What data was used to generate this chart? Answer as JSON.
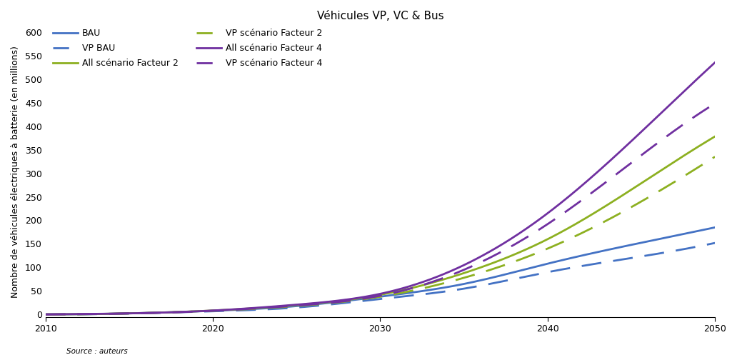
{
  "title": "Véhicules VP, VC & Bus",
  "ylabel": "Nombre de véhicules électriques à batterie (en millions)",
  "source": "Source : auteurs",
  "xlim": [
    2010,
    2050
  ],
  "ylim": [
    -5,
    610
  ],
  "yticks": [
    0,
    50,
    100,
    150,
    200,
    250,
    300,
    350,
    400,
    450,
    500,
    550,
    600
  ],
  "xticks": [
    2010,
    2020,
    2030,
    2040,
    2050
  ],
  "series": {
    "BAU": {
      "color": "#4472C4",
      "linestyle": "solid",
      "linewidth": 2.0,
      "label": "BAU",
      "points": [
        [
          2010,
          0.3
        ],
        [
          2015,
          2.5
        ],
        [
          2020,
          8
        ],
        [
          2025,
          18
        ],
        [
          2030,
          38
        ],
        [
          2035,
          65
        ],
        [
          2040,
          108
        ],
        [
          2045,
          148
        ],
        [
          2050,
          185
        ]
      ]
    },
    "VP_BAU": {
      "color": "#4472C4",
      "linestyle": "dashed",
      "linewidth": 2.0,
      "label": "VP BAU",
      "points": [
        [
          2010,
          0.3
        ],
        [
          2015,
          2.2
        ],
        [
          2020,
          7
        ],
        [
          2025,
          15
        ],
        [
          2030,
          33
        ],
        [
          2035,
          55
        ],
        [
          2040,
          90
        ],
        [
          2045,
          120
        ],
        [
          2050,
          152
        ]
      ]
    },
    "All_F2": {
      "color": "#8DB021",
      "linestyle": "solid",
      "linewidth": 2.0,
      "label": "All scénario Facteur 2",
      "points": [
        [
          2010,
          0.3
        ],
        [
          2015,
          2.5
        ],
        [
          2020,
          8.5
        ],
        [
          2025,
          20
        ],
        [
          2030,
          42
        ],
        [
          2035,
          88
        ],
        [
          2040,
          160
        ],
        [
          2045,
          265
        ],
        [
          2050,
          378
        ]
      ]
    },
    "VP_F2": {
      "color": "#8DB021",
      "linestyle": "dashed",
      "linewidth": 2.0,
      "label": "VP scénario Facteur 2",
      "points": [
        [
          2010,
          0.3
        ],
        [
          2015,
          2.3
        ],
        [
          2020,
          8
        ],
        [
          2025,
          18
        ],
        [
          2030,
          38
        ],
        [
          2035,
          78
        ],
        [
          2040,
          140
        ],
        [
          2045,
          228
        ],
        [
          2050,
          335
        ]
      ]
    },
    "All_F4": {
      "color": "#7030A0",
      "linestyle": "solid",
      "linewidth": 2.0,
      "label": "All scénario Facteur 4",
      "points": [
        [
          2010,
          0.3
        ],
        [
          2015,
          2.5
        ],
        [
          2020,
          8.5
        ],
        [
          2025,
          21
        ],
        [
          2030,
          44
        ],
        [
          2035,
          105
        ],
        [
          2040,
          215
        ],
        [
          2045,
          368
        ],
        [
          2050,
          535
        ]
      ]
    },
    "VP_F4": {
      "color": "#7030A0",
      "linestyle": "dashed",
      "linewidth": 2.0,
      "label": "VP scénario Facteur 4",
      "points": [
        [
          2010,
          0.3
        ],
        [
          2015,
          2.3
        ],
        [
          2020,
          8
        ],
        [
          2025,
          19
        ],
        [
          2030,
          40
        ],
        [
          2035,
          95
        ],
        [
          2040,
          192
        ],
        [
          2045,
          322
        ],
        [
          2050,
          448
        ]
      ]
    }
  },
  "background_color": "#FFFFFF",
  "title_fontsize": 11,
  "label_fontsize": 9,
  "tick_fontsize": 9,
  "source_fontsize": 7.5
}
